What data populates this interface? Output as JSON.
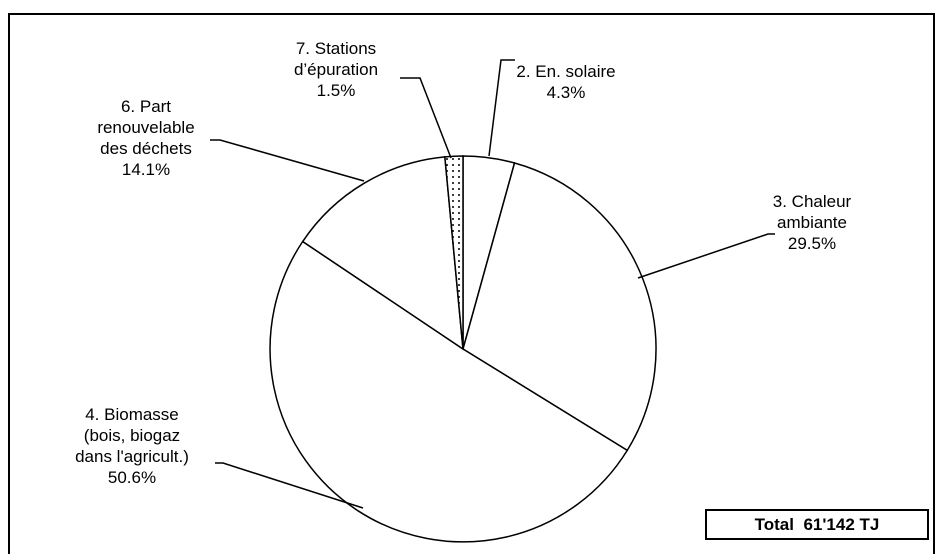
{
  "chart_data": {
    "type": "pie",
    "slices": [
      {
        "id": "solar",
        "label_lines": [
          "2. En. solaire",
          "4.3%"
        ],
        "value": 4.3,
        "pattern": "none"
      },
      {
        "id": "ambient",
        "label_lines": [
          "3. Chaleur",
          "ambiante",
          "29.5%"
        ],
        "value": 29.5,
        "pattern": "none"
      },
      {
        "id": "biomass",
        "label_lines": [
          "4. Biomasse",
          "(bois, biogaz",
          "dans l'agricult.)",
          "50.6%"
        ],
        "value": 50.6,
        "pattern": "none"
      },
      {
        "id": "waste",
        "label_lines": [
          "6. Part",
          "renouvelable",
          "des déchets",
          "14.1%"
        ],
        "value": 14.1,
        "pattern": "none"
      },
      {
        "id": "stations",
        "label_lines": [
          "7. Stations",
          "d’épuration",
          "1.5%"
        ],
        "value": 1.5,
        "pattern": "dotted"
      }
    ],
    "start_angle_deg": 0,
    "direction": "clockwise",
    "colors": {
      "fill": "#ffffff",
      "stroke": "#000000"
    },
    "legend": "none"
  },
  "total": {
    "label": "Total",
    "value": "61'142 TJ"
  }
}
